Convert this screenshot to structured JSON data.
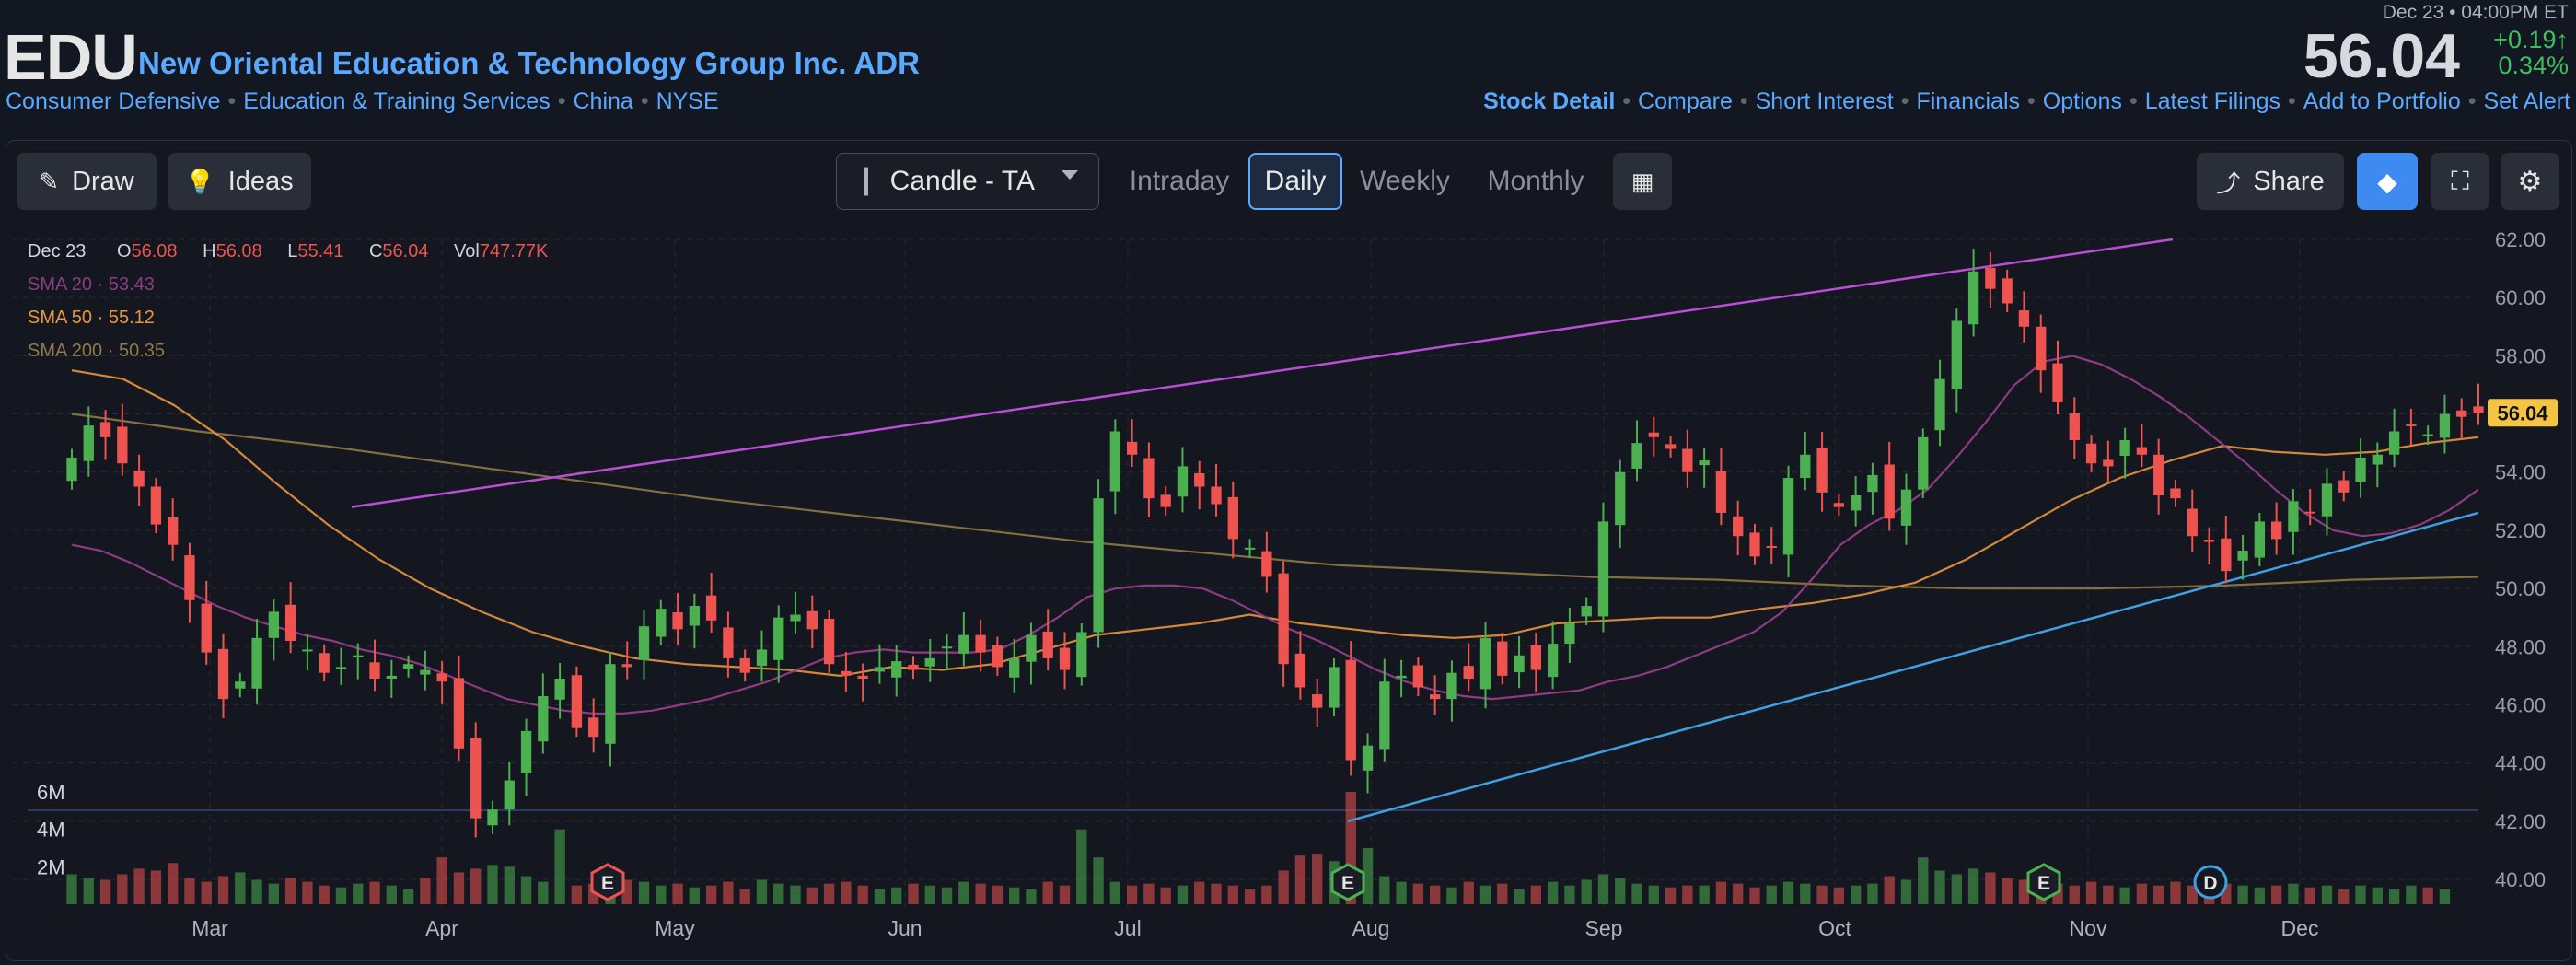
{
  "header": {
    "ticker": "EDU",
    "company": "New Oriental Education & Technology Group Inc. ADR",
    "categories": [
      "Consumer Defensive",
      "Education & Training Services",
      "China",
      "NYSE"
    ],
    "datetime": "Dec 23 • 04:00PM ET",
    "price": "56.04",
    "change": "+0.19",
    "change_arrow": "↑",
    "change_pct": "0.34%",
    "nav": [
      "Stock Detail",
      "Compare",
      "Short Interest",
      "Financials",
      "Options",
      "Latest Filings",
      "Add to Portfolio",
      "Set Alert"
    ]
  },
  "toolbar": {
    "draw": "Draw",
    "ideas": "Ideas",
    "chart_type": "Candle - TA",
    "timeframes": [
      "Intraday",
      "Daily",
      "Weekly",
      "Monthly"
    ],
    "selected_timeframe": "Daily",
    "share": "Share"
  },
  "legend": {
    "date": "Dec 23",
    "o_label": "O",
    "o": "56.08",
    "h_label": "H",
    "h": "56.08",
    "l_label": "L",
    "l": "55.41",
    "c_label": "C",
    "c": "56.04",
    "vol_label": "Vol",
    "vol": "747.77K",
    "sma20_label": "SMA 20",
    "sma20": "53.43",
    "sma50_label": "SMA 50",
    "sma50": "55.12",
    "sma200_label": "SMA 200",
    "sma200": "50.35"
  },
  "colors": {
    "up": "#4caf50",
    "down": "#ef5350",
    "sma20": "#9c3f8f",
    "sma50": "#e8963c",
    "sma200": "#8f7a45",
    "trend_upper": "#b84fd4",
    "trend_lower": "#3fa0e0",
    "accent": "#5aa9ff"
  },
  "chart_data": {
    "type": "candlestick",
    "ylim": [
      39.5,
      62.5
    ],
    "y_ticks": [
      "62.00",
      "60.00",
      "58.00",
      "56.00",
      "54.00",
      "52.00",
      "50.00",
      "48.00",
      "46.00",
      "44.00",
      "42.00",
      "40.00"
    ],
    "x_ticks": [
      "Mar",
      "Apr",
      "May",
      "Jun",
      "Jul",
      "Aug",
      "Sep",
      "Oct",
      "Nov",
      "Dec"
    ],
    "volume_ticks": [
      "6M",
      "4M",
      "2M"
    ],
    "last_price_label": "56.04",
    "closes": [
      54.5,
      55.6,
      55.2,
      54.3,
      53.5,
      52.2,
      51.5,
      49.6,
      47.8,
      46.2,
      46.8,
      48.3,
      49.2,
      48.2,
      47.9,
      47.1,
      47.3,
      47.7,
      46.9,
      47.0,
      47.4,
      47.2,
      46.8,
      44.5,
      42.1,
      42.4,
      43.4,
      45.1,
      46.3,
      46.9,
      45.2,
      44.9,
      47.4,
      47.3,
      48.7,
      49.3,
      48.6,
      49.4,
      48.9,
      47.6,
      47.1,
      47.9,
      49.0,
      49.1,
      48.6,
      47.4,
      47.0,
      46.9,
      47.3,
      47.5,
      47.2,
      47.6,
      48.0,
      48.4,
      47.8,
      47.3,
      47.6,
      48.4,
      47.6,
      47.2,
      48.5,
      53.1,
      55.4,
      54.6,
      53.1,
      52.8,
      54.2,
      53.5,
      52.9,
      51.7,
      51.4,
      50.4,
      47.4,
      46.6,
      45.9,
      47.3,
      44.1,
      44.6,
      46.8,
      47.0,
      46.6,
      46.2,
      47.1,
      46.9,
      48.3,
      47.0,
      47.7,
      47.2,
      48.1,
      48.8,
      49.4,
      52.3,
      54.0,
      55.0,
      55.2,
      54.8,
      54.0,
      54.4,
      52.6,
      51.8,
      51.1,
      51.4,
      53.8,
      54.6,
      53.3,
      52.8,
      53.2,
      53.9,
      52.4,
      53.4,
      55.2,
      57.2,
      59.2,
      60.9,
      60.3,
      59.8,
      59.0,
      57.5,
      56.4,
      55.1,
      54.3,
      54.2,
      55.1,
      54.6,
      53.2,
      53.1,
      51.8,
      51.6,
      50.6,
      51.3,
      52.3,
      51.7,
      53.0,
      52.6,
      53.6,
      53.3,
      54.5,
      54.6,
      55.4,
      55.6,
      55.3,
      56.0,
      55.9,
      56.04
    ],
    "volumes_m": [
      1.6,
      1.4,
      1.3,
      1.6,
      1.9,
      1.8,
      2.2,
      1.4,
      1.2,
      1.5,
      1.7,
      1.3,
      1.1,
      1.4,
      1.2,
      1.0,
      0.9,
      1.1,
      1.2,
      1.0,
      0.8,
      1.4,
      2.5,
      1.7,
      1.9,
      2.1,
      2.0,
      1.5,
      1.2,
      4.0,
      1.0,
      1.1,
      0.9,
      1.3,
      1.2,
      1.0,
      1.1,
      0.9,
      1.0,
      1.2,
      0.8,
      1.3,
      1.1,
      1.0,
      0.9,
      1.1,
      1.2,
      1.0,
      0.8,
      0.9,
      1.1,
      1.0,
      0.9,
      1.2,
      1.1,
      1.0,
      0.9,
      0.8,
      1.2,
      1.0,
      4.0,
      2.5,
      1.2,
      1.0,
      1.1,
      0.9,
      1.0,
      1.2,
      1.1,
      1.0,
      0.8,
      1.0,
      1.8,
      2.6,
      2.7,
      2.3,
      6.0,
      3.0,
      1.5,
      1.2,
      1.1,
      1.0,
      0.9,
      1.2,
      1.0,
      1.1,
      0.8,
      1.0,
      1.2,
      1.0,
      1.3,
      1.6,
      1.4,
      1.1,
      1.0,
      0.9,
      1.0,
      1.0,
      1.2,
      1.1,
      0.9,
      1.0,
      1.2,
      1.1,
      1.0,
      0.9,
      1.0,
      1.1,
      1.5,
      1.3,
      2.5,
      1.8,
      1.6,
      1.9,
      1.7,
      1.4,
      1.3,
      1.2,
      1.1,
      1.0,
      1.2,
      1.0,
      0.9,
      1.1,
      1.0,
      1.2,
      1.0,
      0.9,
      1.1,
      1.0,
      0.9,
      1.0,
      1.1,
      0.9,
      1.0,
      0.8,
      1.0,
      0.9,
      0.8,
      1.0,
      0.9,
      0.8
    ],
    "sma20": [
      51.5,
      51.3,
      50.9,
      50.4,
      49.9,
      49.4,
      49.0,
      48.7,
      48.4,
      48.2,
      47.9,
      47.7,
      47.4,
      47.0,
      46.6,
      46.2,
      46.0,
      45.8,
      45.7,
      45.7,
      45.8,
      46.0,
      46.2,
      46.5,
      46.8,
      47.2,
      47.6,
      47.8,
      47.9,
      47.8,
      47.8,
      47.8,
      47.9,
      48.4,
      49.0,
      49.7,
      50.0,
      50.1,
      50.1,
      50.0,
      49.6,
      49.1,
      48.6,
      48.2,
      47.7,
      47.2,
      46.8,
      46.5,
      46.3,
      46.2,
      46.3,
      46.4,
      46.5,
      46.8,
      47.0,
      47.3,
      47.7,
      48.1,
      48.5,
      49.2,
      50.3,
      51.5,
      52.2,
      52.7,
      53.4,
      54.5,
      55.7,
      57.0,
      57.8,
      58.0,
      57.7,
      57.2,
      56.6,
      55.9,
      55.1,
      54.3,
      53.4,
      52.6,
      52.0,
      51.8,
      51.9,
      52.2,
      52.7,
      53.4
    ],
    "sma50": [
      57.5,
      57.2,
      56.3,
      55.1,
      53.6,
      52.2,
      51.0,
      50.0,
      49.2,
      48.5,
      48.0,
      47.6,
      47.4,
      47.3,
      47.2,
      47.0,
      47.3,
      47.2,
      47.4,
      47.9,
      48.4,
      48.6,
      48.8,
      49.1,
      48.8,
      48.6,
      48.4,
      48.3,
      48.4,
      48.8,
      48.9,
      49.0,
      49.0,
      49.3,
      49.5,
      49.8,
      50.2,
      51.0,
      52.0,
      53.0,
      53.8,
      54.4,
      54.9,
      54.7,
      54.6,
      54.7,
      55.0,
      55.2
    ],
    "sma200": [
      56.0,
      55.4,
      54.9,
      54.3,
      53.7,
      53.1,
      52.6,
      52.1,
      51.6,
      51.2,
      50.8,
      50.6,
      50.4,
      50.3,
      50.1,
      50.0,
      50.0,
      50.1,
      50.3,
      50.4
    ],
    "earnings_markers": [
      "E",
      "E",
      "E",
      "D"
    ]
  }
}
